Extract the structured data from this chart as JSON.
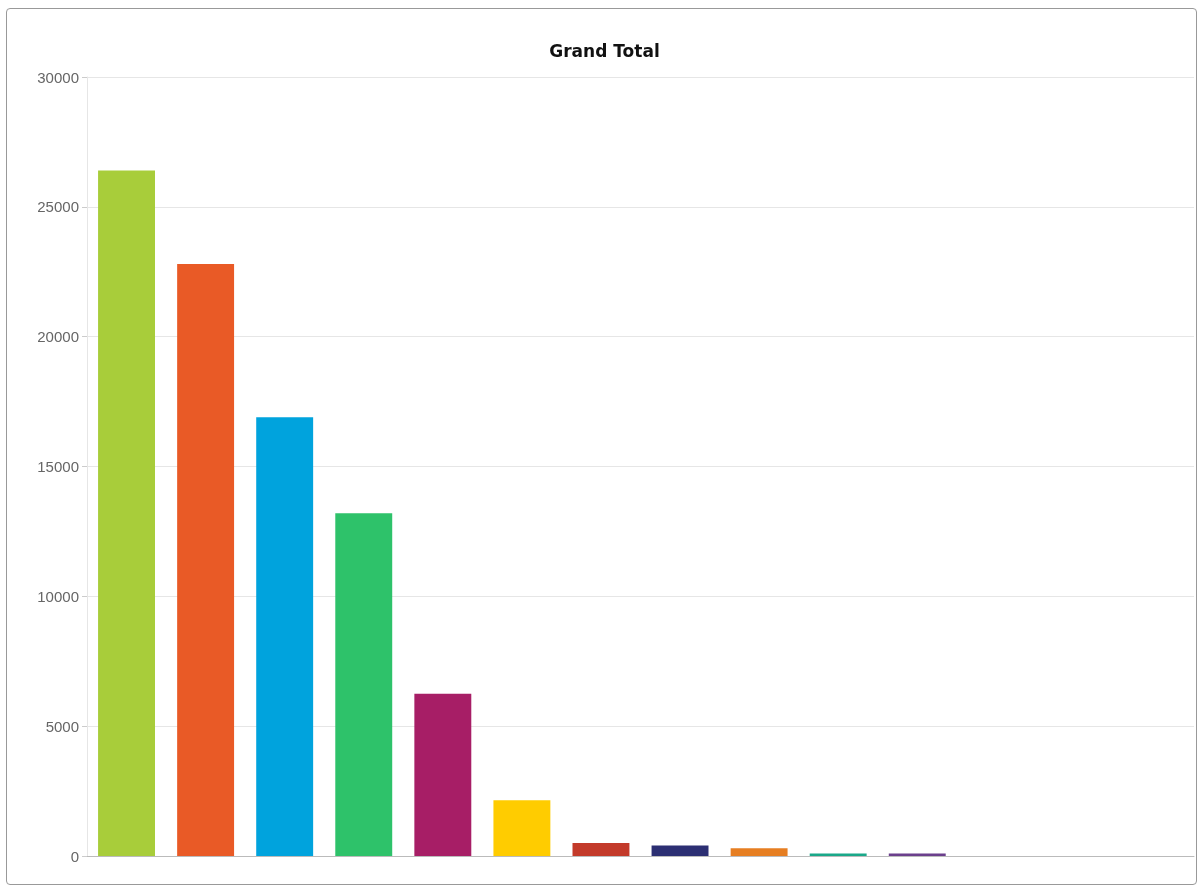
{
  "chart_data": {
    "type": "bar",
    "title": "Grand Total",
    "categories": [
      null,
      null,
      null,
      null,
      null,
      null,
      null,
      null,
      null,
      null,
      null,
      null,
      null,
      null
    ],
    "values": [
      26400,
      22800,
      16900,
      13200,
      6250,
      2150,
      500,
      400,
      300,
      100,
      100,
      null,
      null,
      null
    ],
    "colors": [
      "#a8cd3a",
      "#e95a26",
      "#00a3dd",
      "#2ec26a",
      "#a71e66",
      "#ffcc00",
      "#c33a2a",
      "#2c2f73",
      "#e67e22",
      "#1aa889",
      "#6b3f8c",
      "#999999",
      "#999999",
      "#999999"
    ],
    "ylim": [
      0,
      30000
    ],
    "yticks": [
      0,
      5000,
      10000,
      15000,
      20000,
      25000,
      30000
    ],
    "grid": "y"
  }
}
